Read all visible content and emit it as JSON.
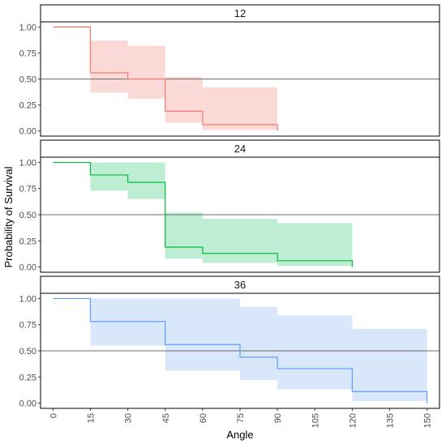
{
  "chart_data": {
    "type": "step",
    "xlabel": "Angle",
    "ylabel": "Probability of Survival",
    "xlim": [
      -5,
      155
    ],
    "ylim": [
      -0.05,
      1.05
    ],
    "x_ticks": [
      0,
      15,
      30,
      45,
      60,
      75,
      90,
      105,
      120,
      135,
      150
    ],
    "y_ticks": [
      "0.00",
      "0.25",
      "0.50",
      "0.75",
      "1.00"
    ],
    "reference_line_y": 0.5,
    "grid": false,
    "panels": [
      {
        "strip": "12",
        "color": "#F8766D",
        "fill": "#FBD9D6",
        "steps": [
          {
            "x0": 0,
            "x1": 15,
            "y": 1.0,
            "lo": null,
            "hi": null
          },
          {
            "x0": 15,
            "x1": 30,
            "y": 0.56,
            "lo": 0.37,
            "hi": 0.87
          },
          {
            "x0": 30,
            "x1": 45,
            "y": 0.5,
            "lo": 0.31,
            "hi": 0.82
          },
          {
            "x0": 45,
            "x1": 60,
            "y": 0.19,
            "lo": 0.08,
            "hi": 0.52
          },
          {
            "x0": 60,
            "x1": 90,
            "y": 0.06,
            "lo": 0.01,
            "hi": 0.42
          }
        ],
        "end": {
          "x": 90,
          "y": 0.0
        }
      },
      {
        "strip": "24",
        "color": "#00BA38",
        "fill": "#BDEED3",
        "steps": [
          {
            "x0": 0,
            "x1": 15,
            "y": 1.0,
            "lo": null,
            "hi": null
          },
          {
            "x0": 15,
            "x1": 30,
            "y": 0.88,
            "lo": 0.73,
            "hi": 1.0
          },
          {
            "x0": 30,
            "x1": 45,
            "y": 0.81,
            "lo": 0.65,
            "hi": 1.0
          },
          {
            "x0": 45,
            "x1": 60,
            "y": 0.19,
            "lo": 0.08,
            "hi": 0.52
          },
          {
            "x0": 60,
            "x1": 90,
            "y": 0.13,
            "lo": 0.04,
            "hi": 0.46
          },
          {
            "x0": 90,
            "x1": 120,
            "y": 0.06,
            "lo": 0.01,
            "hi": 0.42
          }
        ],
        "end": {
          "x": 120,
          "y": 0.0
        }
      },
      {
        "strip": "36",
        "color": "#619CFF",
        "fill": "#D9E7FB",
        "steps": [
          {
            "x0": 0,
            "x1": 15,
            "y": 1.0,
            "lo": null,
            "hi": null
          },
          {
            "x0": 15,
            "x1": 45,
            "y": 0.78,
            "lo": 0.55,
            "hi": 1.0
          },
          {
            "x0": 45,
            "x1": 75,
            "y": 0.56,
            "lo": 0.31,
            "hi": 1.0
          },
          {
            "x0": 75,
            "x1": 90,
            "y": 0.44,
            "lo": 0.22,
            "hi": 0.92
          },
          {
            "x0": 90,
            "x1": 120,
            "y": 0.33,
            "lo": 0.13,
            "hi": 0.84
          },
          {
            "x0": 120,
            "x1": 150,
            "y": 0.11,
            "lo": 0.02,
            "hi": 0.71
          }
        ],
        "end": {
          "x": 150,
          "y": 0.0
        }
      }
    ]
  }
}
